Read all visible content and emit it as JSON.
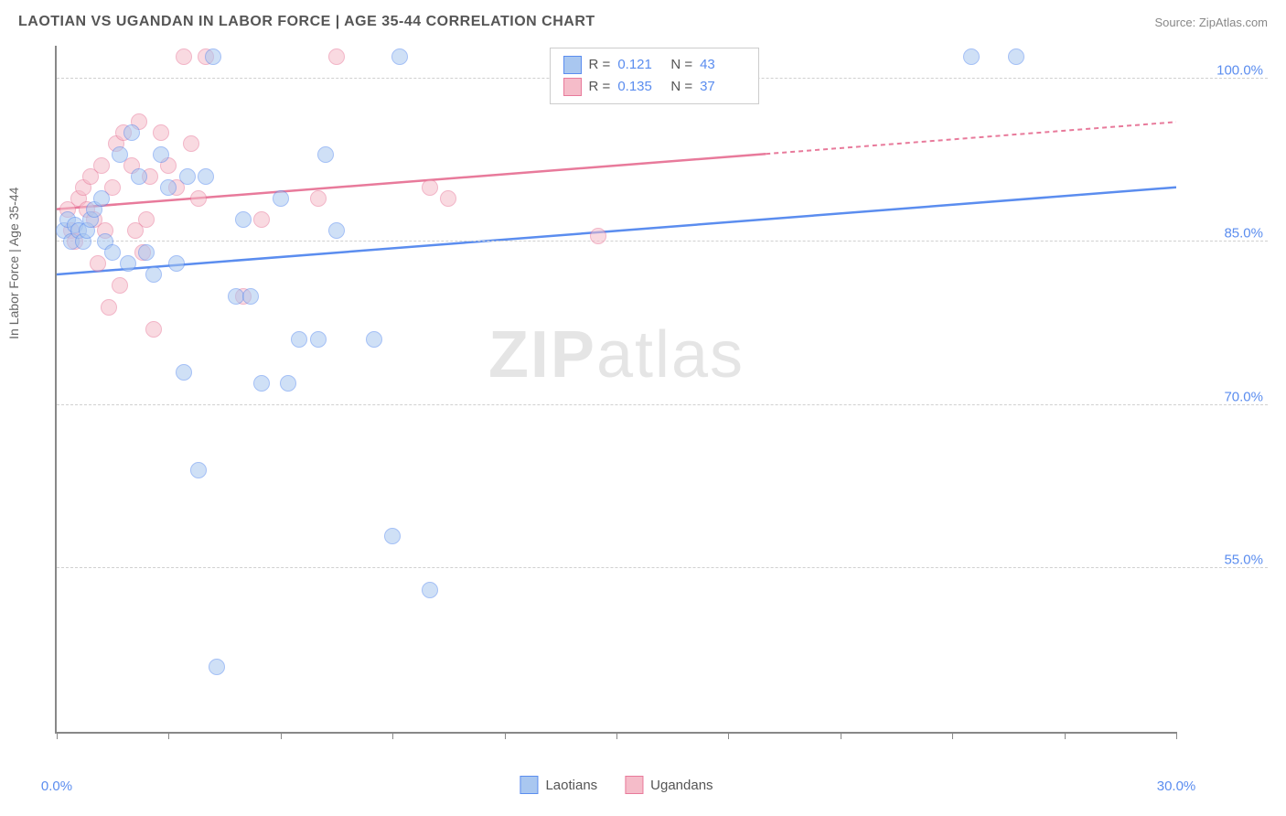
{
  "header": {
    "title": "LAOTIAN VS UGANDAN IN LABOR FORCE | AGE 35-44 CORRELATION CHART",
    "source": "Source: ZipAtlas.com"
  },
  "watermark": {
    "prefix": "ZIP",
    "suffix": "atlas"
  },
  "chart": {
    "type": "scatter",
    "y_axis_label": "In Labor Force | Age 35-44",
    "x_range": [
      0,
      30
    ],
    "y_range": [
      40,
      103
    ],
    "x_ticks": [
      0,
      3,
      6,
      9,
      12,
      15,
      18,
      21,
      24,
      27,
      30
    ],
    "x_tick_labels": {
      "0": "0.0%",
      "30": "30.0%"
    },
    "y_ticks": [
      55,
      70,
      85,
      100
    ],
    "y_tick_labels": {
      "55": "55.0%",
      "70": "70.0%",
      "85": "85.0%",
      "100": "100.0%"
    },
    "grid_color": "#d0d0d0",
    "axis_color": "#888888",
    "tick_label_color": "#5b8def",
    "background_color": "#ffffff"
  },
  "series": {
    "laotians": {
      "label": "Laotians",
      "fill_color": "#a9c7f0",
      "stroke_color": "#5b8def",
      "r_value": "0.121",
      "n_value": "43",
      "trend": {
        "x1": 0,
        "y1": 82,
        "x2": 30,
        "y2": 90,
        "dash_from_x": 30
      },
      "points": [
        [
          0.2,
          86
        ],
        [
          0.3,
          87
        ],
        [
          0.4,
          85
        ],
        [
          0.5,
          86.5
        ],
        [
          0.6,
          86
        ],
        [
          0.7,
          85
        ],
        [
          0.8,
          86
        ],
        [
          0.9,
          87
        ],
        [
          1.0,
          88
        ],
        [
          1.2,
          89
        ],
        [
          1.3,
          85
        ],
        [
          1.5,
          84
        ],
        [
          1.7,
          93
        ],
        [
          1.9,
          83
        ],
        [
          2.0,
          95
        ],
        [
          2.2,
          91
        ],
        [
          2.4,
          84
        ],
        [
          2.6,
          82
        ],
        [
          2.8,
          93
        ],
        [
          3.0,
          90
        ],
        [
          3.2,
          83
        ],
        [
          3.4,
          73
        ],
        [
          3.5,
          91
        ],
        [
          3.8,
          64
        ],
        [
          4.0,
          91
        ],
        [
          4.2,
          102
        ],
        [
          4.3,
          46
        ],
        [
          4.8,
          80
        ],
        [
          5.0,
          87
        ],
        [
          5.2,
          80
        ],
        [
          5.5,
          72
        ],
        [
          6.0,
          89
        ],
        [
          6.2,
          72
        ],
        [
          6.5,
          76
        ],
        [
          7.0,
          76
        ],
        [
          7.2,
          93
        ],
        [
          7.5,
          86
        ],
        [
          8.5,
          76
        ],
        [
          9.0,
          58
        ],
        [
          9.2,
          102
        ],
        [
          10.0,
          53
        ],
        [
          24.5,
          102
        ],
        [
          25.7,
          102
        ]
      ]
    },
    "ugandans": {
      "label": "Ugandans",
      "fill_color": "#f5bcc9",
      "stroke_color": "#e87a9b",
      "r_value": "0.135",
      "n_value": "37",
      "trend": {
        "x1": 0,
        "y1": 88,
        "x2": 30,
        "y2": 96,
        "dash_from_x": 19
      },
      "points": [
        [
          0.3,
          88
        ],
        [
          0.4,
          86
        ],
        [
          0.5,
          85
        ],
        [
          0.6,
          89
        ],
        [
          0.7,
          90
        ],
        [
          0.8,
          88
        ],
        [
          0.9,
          91
        ],
        [
          1.0,
          87
        ],
        [
          1.1,
          83
        ],
        [
          1.2,
          92
        ],
        [
          1.3,
          86
        ],
        [
          1.4,
          79
        ],
        [
          1.5,
          90
        ],
        [
          1.6,
          94
        ],
        [
          1.7,
          81
        ],
        [
          1.8,
          95
        ],
        [
          2.0,
          92
        ],
        [
          2.1,
          86
        ],
        [
          2.2,
          96
        ],
        [
          2.3,
          84
        ],
        [
          2.4,
          87
        ],
        [
          2.5,
          91
        ],
        [
          2.6,
          77
        ],
        [
          2.8,
          95
        ],
        [
          3.0,
          92
        ],
        [
          3.2,
          90
        ],
        [
          3.4,
          102
        ],
        [
          3.6,
          94
        ],
        [
          3.8,
          89
        ],
        [
          4.0,
          102
        ],
        [
          5.0,
          80
        ],
        [
          5.5,
          87
        ],
        [
          7.0,
          89
        ],
        [
          7.5,
          102
        ],
        [
          10.0,
          90
        ],
        [
          10.5,
          89
        ],
        [
          14.5,
          85.5
        ]
      ]
    }
  },
  "legend_top": {
    "r_label": "R =",
    "n_label": "N ="
  },
  "legend_bottom": {
    "item1": "Laotians",
    "item2": "Ugandans"
  }
}
